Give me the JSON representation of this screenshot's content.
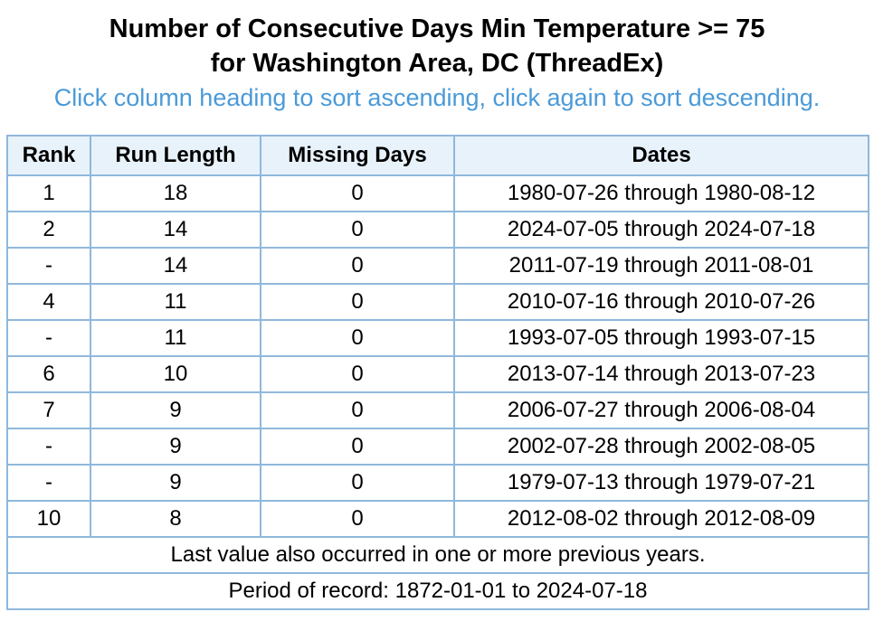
{
  "header": {
    "title_line1": "Number of Consecutive Days Min Temperature >= 75",
    "title_line2": "for Washington Area, DC (ThreadEx)",
    "sort_hint": "Click column heading to sort ascending, click again to sort descending."
  },
  "table": {
    "columns": [
      "Rank",
      "Run Length",
      "Missing Days",
      "Dates"
    ],
    "rows": [
      {
        "rank": "1",
        "run_length": "18",
        "missing_days": "0",
        "dates": "1980-07-26 through 1980-08-12"
      },
      {
        "rank": "2",
        "run_length": "14",
        "missing_days": "0",
        "dates": "2024-07-05 through 2024-07-18"
      },
      {
        "rank": "-",
        "run_length": "14",
        "missing_days": "0",
        "dates": "2011-07-19 through 2011-08-01"
      },
      {
        "rank": "4",
        "run_length": "11",
        "missing_days": "0",
        "dates": "2010-07-16 through 2010-07-26"
      },
      {
        "rank": "-",
        "run_length": "11",
        "missing_days": "0",
        "dates": "1993-07-05 through 1993-07-15"
      },
      {
        "rank": "6",
        "run_length": "10",
        "missing_days": "0",
        "dates": "2013-07-14 through 2013-07-23"
      },
      {
        "rank": "7",
        "run_length": "9",
        "missing_days": "0",
        "dates": "2006-07-27 through 2006-08-04"
      },
      {
        "rank": "-",
        "run_length": "9",
        "missing_days": "0",
        "dates": "2002-07-28 through 2002-08-05"
      },
      {
        "rank": "-",
        "run_length": "9",
        "missing_days": "0",
        "dates": "1979-07-13 through 1979-07-21"
      },
      {
        "rank": "10",
        "run_length": "8",
        "missing_days": "0",
        "dates": "2012-08-02 through 2012-08-09"
      }
    ],
    "footnote": "Last value also occurred in one or more previous years.",
    "period": "Period of record: 1872-01-01 to 2024-07-18"
  },
  "colors": {
    "border": "#8fb8dc",
    "header_bg": "#e8f2fa",
    "hint_text": "#4a9ad8"
  }
}
